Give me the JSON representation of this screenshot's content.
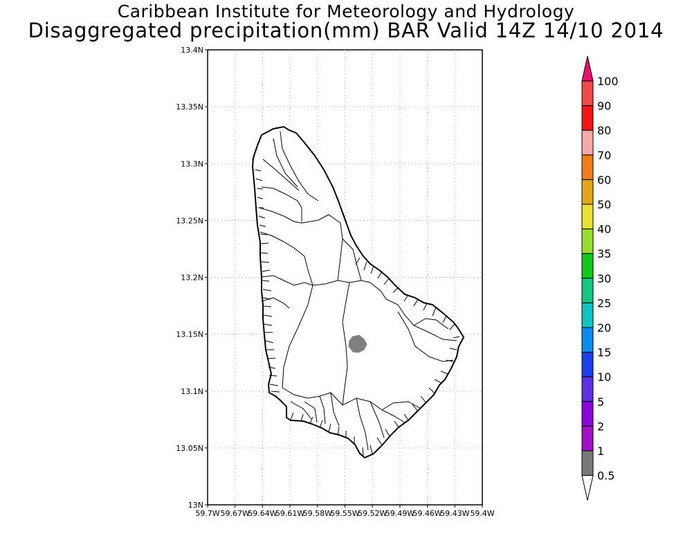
{
  "title_line1": "Caribbean Institute for Meteorology and Hydrology",
  "title_line2": "Disaggregated precipitation(mm) BAR Valid 14Z 14/10 2014",
  "lat_ticks": [
    "13.4N",
    "13.35N",
    "13.3N",
    "13.25N",
    "13.2N",
    "13.15N",
    "13.1N",
    "13.05N",
    "13N"
  ],
  "lon_ticks": [
    "59.7W",
    "59.67W",
    "59.64W",
    "59.61W",
    "59.58W",
    "59.55W",
    "59.52W",
    "59.49W",
    "59.46W",
    "59.43W",
    "59.4W"
  ],
  "colorbar": {
    "labels": [
      "100",
      "90",
      "80",
      "70",
      "60",
      "50",
      "40",
      "35",
      "30",
      "25",
      "20",
      "15",
      "10",
      "5",
      "2",
      "1",
      "0.5"
    ],
    "colors": [
      "#e8106f",
      "#f04848",
      "#f81414",
      "#f8a8a8",
      "#f07c1c",
      "#e4a41c",
      "#e8e030",
      "#98dc30",
      "#10c818",
      "#10c880",
      "#10c4c4",
      "#0c8cf0",
      "#1c40f0",
      "#6030e4",
      "#8808dc",
      "#a010c8",
      "#787878",
      "#ffffff"
    ]
  },
  "data_areas": [
    {
      "range": "0.5-1",
      "color": "#808080"
    }
  ]
}
